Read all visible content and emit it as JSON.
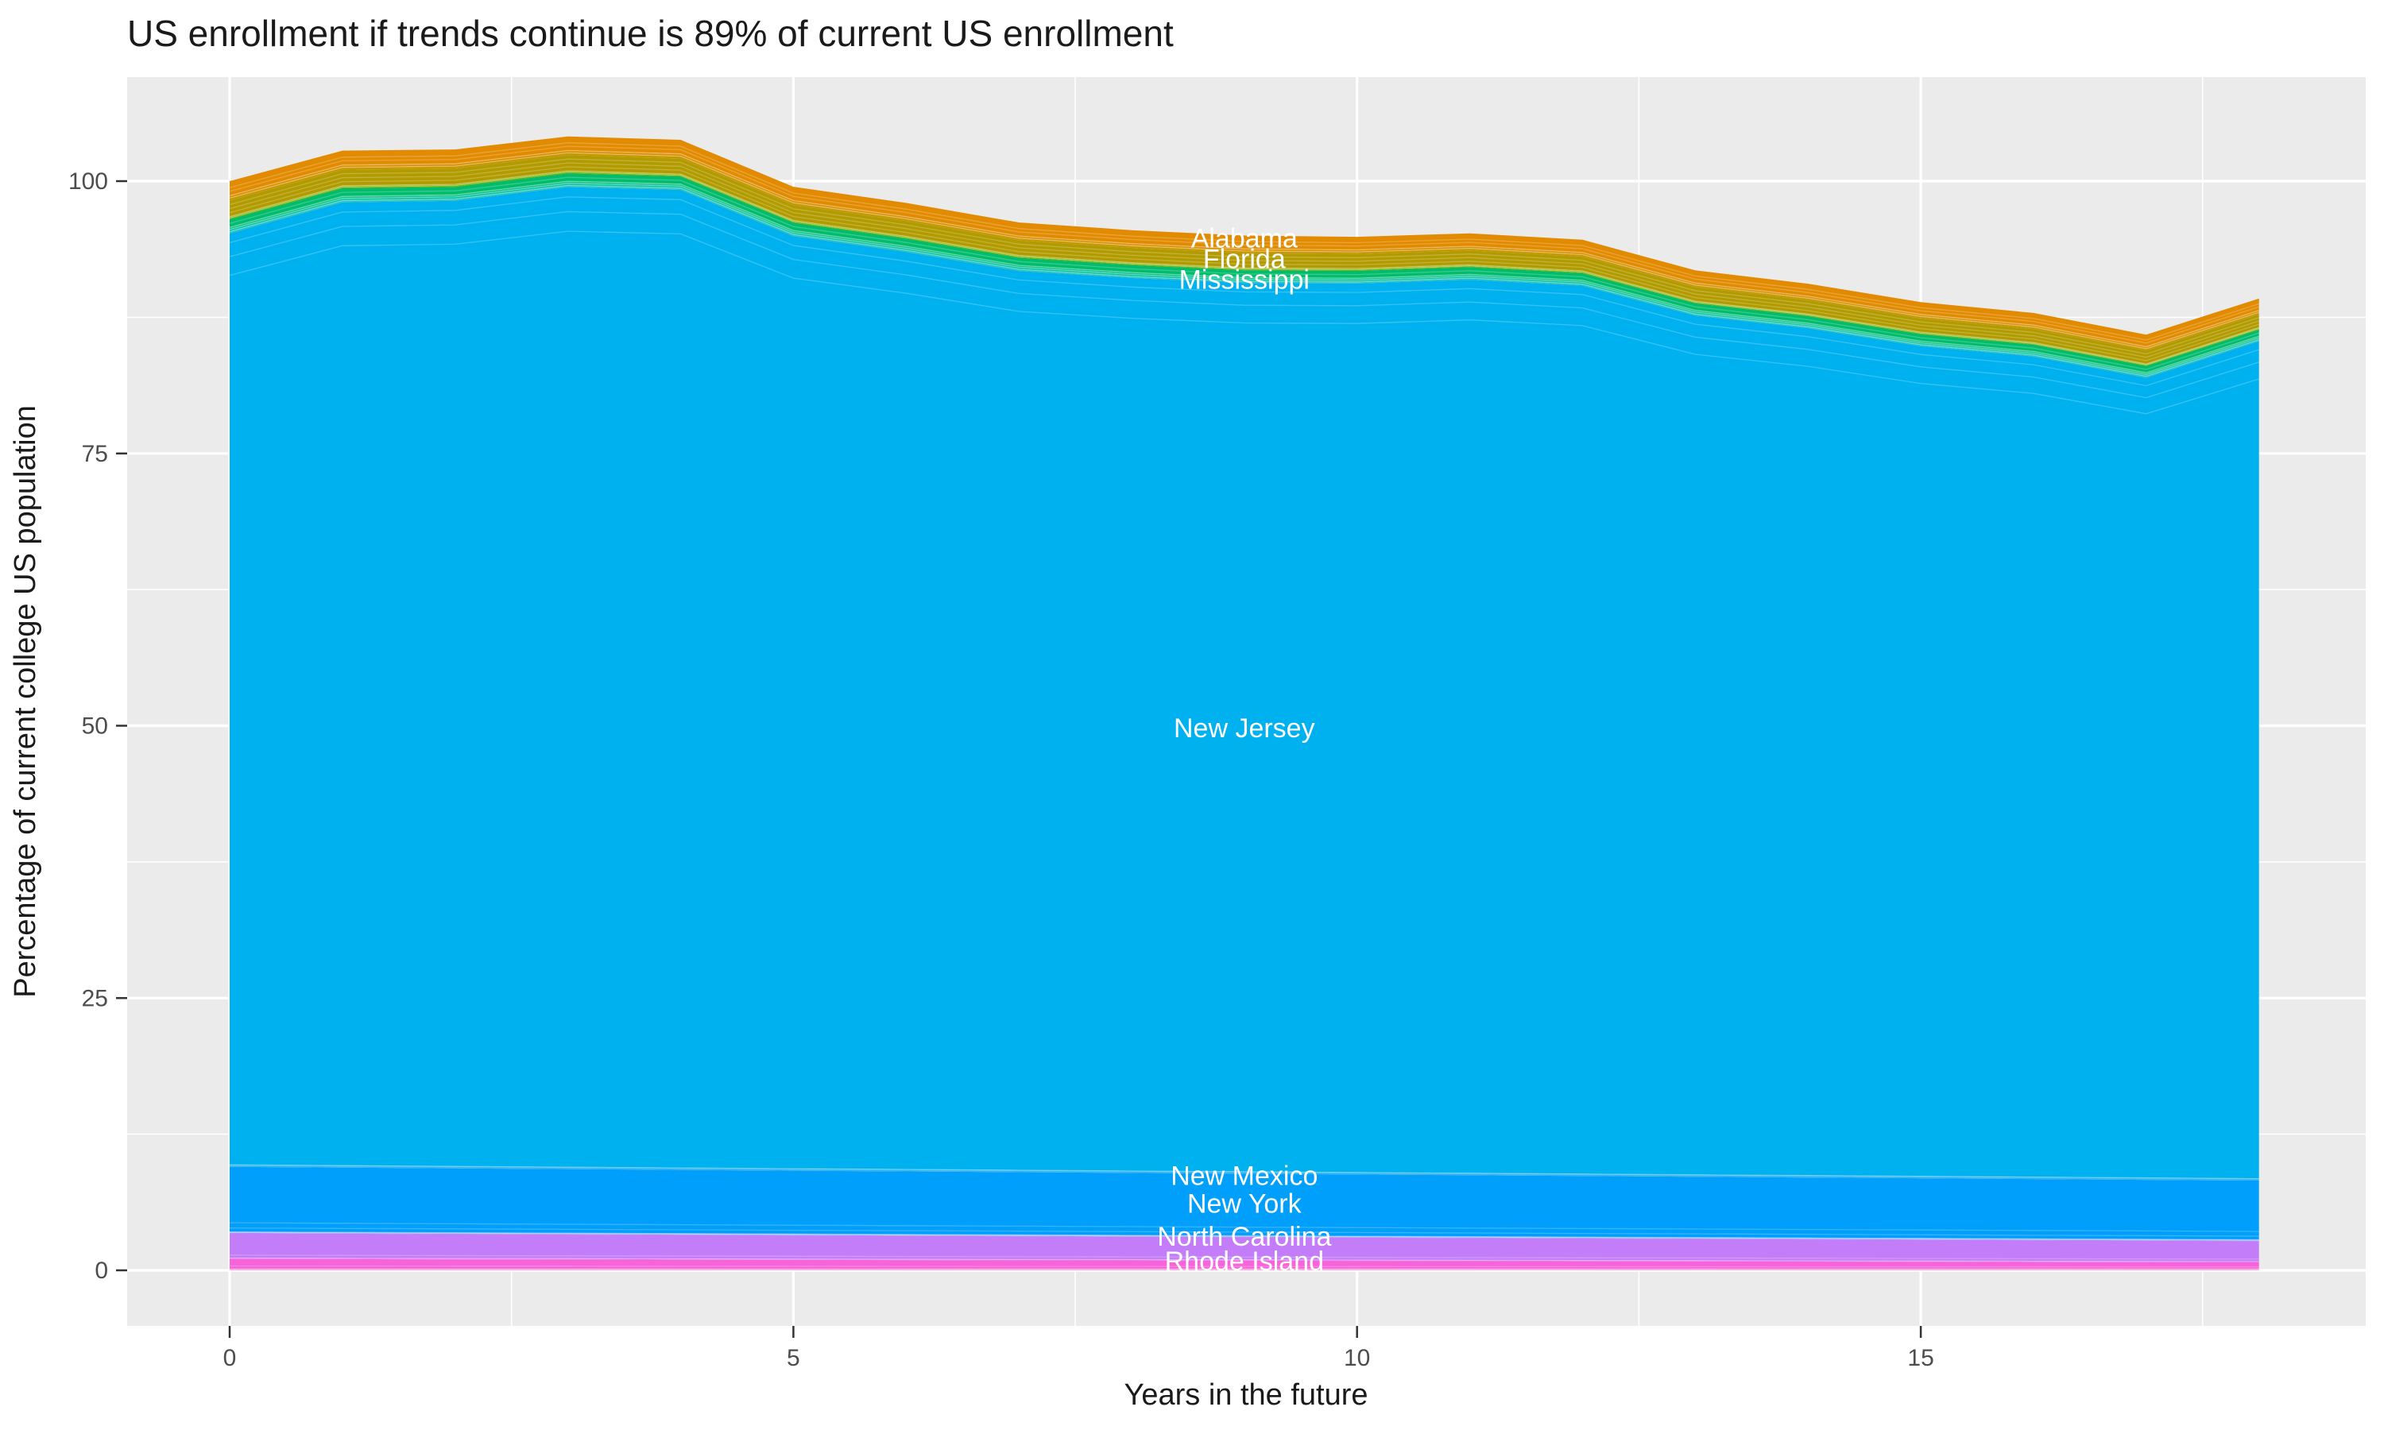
{
  "chart": {
    "title": "US enrollment if trends continue is 89% of current US enrollment",
    "x_axis": {
      "title": "Years in the future",
      "tick_labels": [
        "0",
        "5",
        "10",
        "15"
      ],
      "tick_years": [
        0,
        5,
        10,
        15
      ],
      "minor_years": [
        2.5,
        7.5,
        12.5,
        17.5
      ]
    },
    "y_axis": {
      "title": "Percentage of current college US population",
      "tick_labels": [
        "0",
        "25",
        "50",
        "75",
        "100"
      ],
      "tick_values": [
        0,
        25,
        50,
        75,
        100
      ],
      "minor_values": [
        12.5,
        37.5,
        62.5,
        87.5
      ]
    },
    "colors": {
      "panel_bg": "#EBEBEB",
      "grid": "#FFFFFF",
      "tick_mark": "#333333",
      "tick_text": "#4D4D4D",
      "title_text": "#1A1A1A",
      "label_text": "#FFFFFF"
    }
  },
  "chart_data": {
    "type": "area",
    "stacked": true,
    "x": [
      0,
      1,
      2,
      3,
      4,
      5,
      6,
      7,
      8,
      9,
      10,
      11,
      12,
      13,
      14,
      15,
      16,
      17,
      18
    ],
    "total_pct_of_current": [
      100.0,
      102.8,
      102.9,
      104.1,
      103.8,
      99.5,
      98.0,
      96.2,
      95.5,
      95.0,
      94.9,
      95.2,
      94.6,
      91.8,
      90.6,
      88.9,
      87.9,
      85.9,
      89.2
    ],
    "ylim_data": [
      0,
      100
    ],
    "grid": true,
    "legend": "none",
    "bands": [
      {
        "name": "other-states-bottom-2",
        "label": null,
        "color": "#FF6FD1",
        "values": 0.05,
        "sliver": true
      },
      {
        "name": "other-states-bottom-1",
        "label": null,
        "color": "#FB62D6",
        "values": 0.07,
        "sliver": true
      },
      {
        "name": "rhode-island",
        "label": "Rhode Island",
        "color": "#F763D9",
        "values": [
          0.93,
          0.91,
          0.89,
          0.88,
          0.86,
          0.84,
          0.82,
          0.8,
          0.79,
          0.77,
          0.75,
          0.73,
          0.71,
          0.7,
          0.68,
          0.66,
          0.64,
          0.62,
          0.61
        ],
        "hairlines": [
          0.3
        ]
      },
      {
        "name": "other-states-ri-nc",
        "label": null,
        "color": "#DF6DF1",
        "values": 0.07,
        "sliver": true
      },
      {
        "name": "north-carolina",
        "label": "North Carolina",
        "color": "#C47DF8",
        "values": [
          2.28,
          2.26,
          2.24,
          2.21,
          2.19,
          2.17,
          2.15,
          2.13,
          2.1,
          2.08,
          2.06,
          2.04,
          2.02,
          1.99,
          1.97,
          1.95,
          1.93,
          1.91,
          1.88
        ],
        "hairlines": [
          0.12
        ]
      },
      {
        "name": "other-states-nc-ny-1",
        "label": null,
        "color": "#9B86FB",
        "values": 0.07,
        "sliver": true
      },
      {
        "name": "other-states-nc-ny-2",
        "label": null,
        "color": "#6F9AFB",
        "values": 0.06,
        "sliver": true
      },
      {
        "name": "new-york",
        "label": "New York",
        "color": "#019FFC",
        "values": [
          5.97,
          5.94,
          5.91,
          5.88,
          5.85,
          5.82,
          5.79,
          5.76,
          5.73,
          5.7,
          5.67,
          5.64,
          5.61,
          5.58,
          5.55,
          5.52,
          5.49,
          5.46,
          5.43
        ],
        "hairlines": [
          0.06,
          0.14
        ]
      },
      {
        "name": "new-mexico",
        "label": "New Mexico",
        "color": "#35B5F2",
        "values": 0.18,
        "sliver": true
      },
      {
        "name": "new-jersey",
        "label": "New Jersey",
        "color": "#00B1F0",
        "values": [
          85.52,
          88.44,
          88.66,
          89.98,
          89.8,
          85.62,
          84.24,
          82.56,
          81.98,
          81.6,
          81.62,
          82.04,
          81.56,
          78.88,
          77.8,
          76.22,
          75.34,
          73.46,
          76.88
        ],
        "hairlines": [
          0.955,
          0.975,
          0.99
        ]
      },
      {
        "name": "other-states-teal-1",
        "label": null,
        "color": "#27C3BC",
        "values": [
          0.17,
          0.17,
          0.16,
          0.16,
          0.16,
          0.16,
          0.16,
          0.16,
          0.15,
          0.15,
          0.15,
          0.15,
          0.15,
          0.15,
          0.14,
          0.14,
          0.14,
          0.14,
          0.14
        ],
        "sliver": true
      },
      {
        "name": "other-states-teal-2",
        "label": null,
        "color": "#00C2A4",
        "values": [
          0.19,
          0.19,
          0.19,
          0.19,
          0.18,
          0.18,
          0.18,
          0.18,
          0.18,
          0.17,
          0.17,
          0.17,
          0.17,
          0.17,
          0.16,
          0.16,
          0.16,
          0.16,
          0.16
        ],
        "sliver": true
      },
      {
        "name": "other-states-teal-3",
        "label": null,
        "color": "#0DC287",
        "values": [
          0.19,
          0.19,
          0.19,
          0.19,
          0.18,
          0.18,
          0.18,
          0.18,
          0.18,
          0.17,
          0.17,
          0.17,
          0.17,
          0.17,
          0.16,
          0.16,
          0.16,
          0.16,
          0.16
        ],
        "sliver": true
      },
      {
        "name": "mississippi",
        "label": "Mississippi",
        "color": "#00BC6C",
        "values": [
          0.74,
          0.74,
          0.73,
          0.72,
          0.71,
          0.71,
          0.7,
          0.69,
          0.68,
          0.67,
          0.67,
          0.66,
          0.65,
          0.64,
          0.64,
          0.63,
          0.62,
          0.61,
          0.6
        ],
        "hairlines": [
          0.5
        ]
      },
      {
        "name": "other-states-yg-1",
        "label": null,
        "color": "#5BB300",
        "values": [
          0.12,
          0.12,
          0.12,
          0.12,
          0.11,
          0.11,
          0.11,
          0.11,
          0.11,
          0.11,
          0.11,
          0.11,
          0.11,
          0.1,
          0.1,
          0.1,
          0.1,
          0.1,
          0.1
        ],
        "sliver": true
      },
      {
        "name": "other-states-yg-2",
        "label": null,
        "color": "#91AB00",
        "values": [
          0.12,
          0.12,
          0.12,
          0.12,
          0.11,
          0.11,
          0.11,
          0.11,
          0.11,
          0.11,
          0.11,
          0.11,
          0.11,
          0.1,
          0.1,
          0.1,
          0.1,
          0.1,
          0.1
        ],
        "sliver": true
      },
      {
        "name": "florida",
        "label": "Florida",
        "color": "#B29B00",
        "values": [
          1.49,
          1.47,
          1.46,
          1.44,
          1.43,
          1.41,
          1.4,
          1.38,
          1.36,
          1.35,
          1.33,
          1.32,
          1.3,
          1.29,
          1.27,
          1.26,
          1.24,
          1.22,
          1.21
        ],
        "hairlines": [
          0.25,
          0.5,
          0.75
        ]
      },
      {
        "name": "other-states-or-1",
        "label": null,
        "color": "#C89700",
        "values": [
          0.22,
          0.21,
          0.21,
          0.21,
          0.21,
          0.2,
          0.2,
          0.2,
          0.2,
          0.2,
          0.19,
          0.19,
          0.19,
          0.19,
          0.18,
          0.18,
          0.18,
          0.18,
          0.18
        ],
        "sliver": true
      },
      {
        "name": "other-states-or-2",
        "label": null,
        "color": "#D79100",
        "values": [
          0.22,
          0.21,
          0.21,
          0.21,
          0.21,
          0.2,
          0.2,
          0.2,
          0.2,
          0.2,
          0.19,
          0.19,
          0.19,
          0.19,
          0.18,
          0.18,
          0.18,
          0.18,
          0.18
        ],
        "sliver": true
      },
      {
        "name": "alabama",
        "label": "Alabama",
        "color": "#E28B00",
        "values": [
          1.34,
          1.33,
          1.32,
          1.3,
          1.29,
          1.27,
          1.26,
          1.25,
          1.23,
          1.22,
          1.2,
          1.19,
          1.18,
          1.16,
          1.15,
          1.13,
          1.12,
          1.11,
          1.09
        ],
        "hairlines": [
          0.3,
          0.55
        ]
      }
    ],
    "labels": [
      {
        "text": "Alabama",
        "x": 9,
        "y": 94.8
      },
      {
        "text": "Florida",
        "x": 9,
        "y": 92.9
      },
      {
        "text": "Mississippi",
        "x": 9,
        "y": 91.0
      },
      {
        "text": "New Jersey",
        "x": 9,
        "y": 49.8
      },
      {
        "text": "New Mexico",
        "x": 9,
        "y": 8.73
      },
      {
        "text": "New York",
        "x": 9,
        "y": 6.18
      },
      {
        "text": "North Carolina",
        "x": 9,
        "y": 3.13
      },
      {
        "text": "Rhode Island",
        "x": 9,
        "y": 0.87
      }
    ]
  }
}
